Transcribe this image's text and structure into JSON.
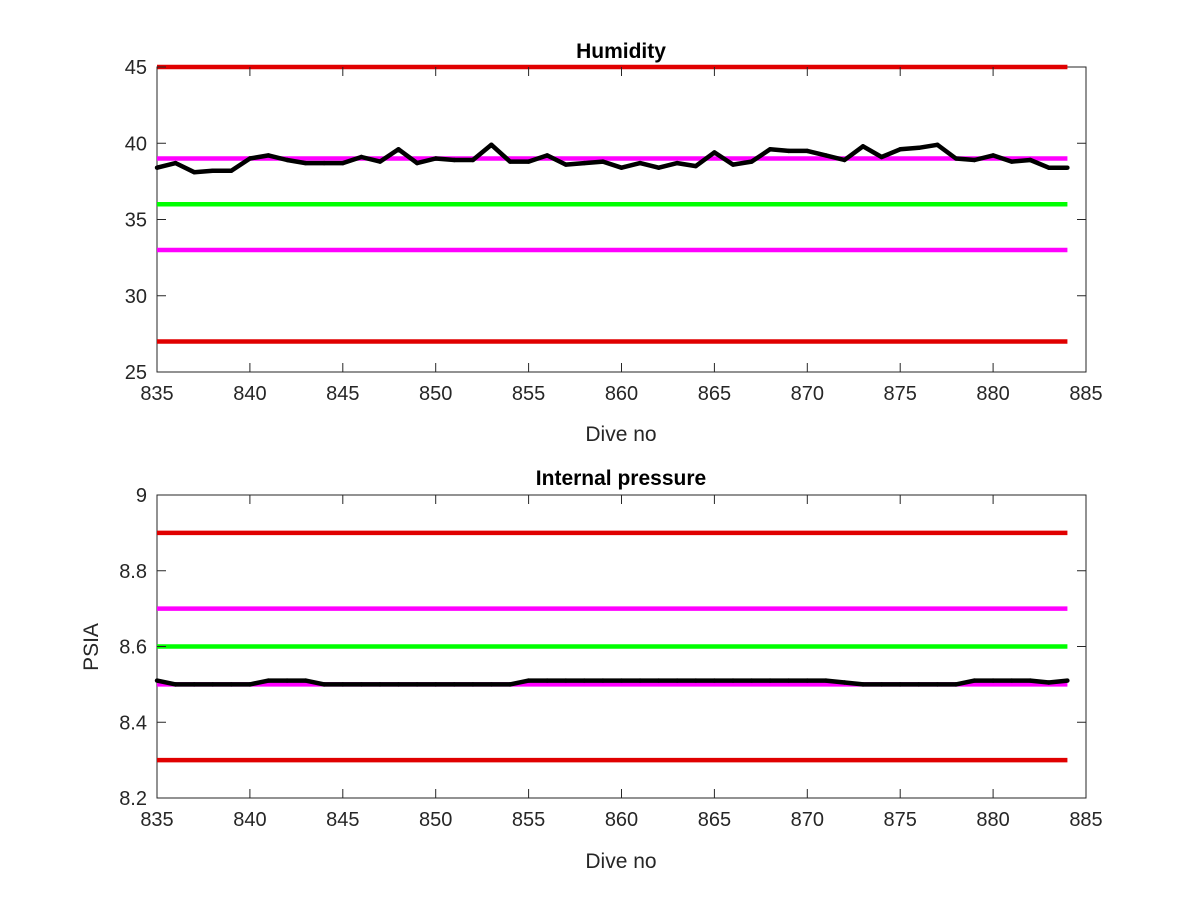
{
  "chart_data": [
    {
      "type": "line",
      "title": "Humidity",
      "xlabel": "Dive no",
      "ylabel": "",
      "xlim": [
        835,
        885
      ],
      "ylim": [
        25,
        45
      ],
      "xticks": [
        835,
        840,
        845,
        850,
        855,
        860,
        865,
        870,
        875,
        880,
        885
      ],
      "yticks": [
        25,
        30,
        35,
        40,
        45
      ],
      "grid": false,
      "series": [
        {
          "color": "#000000",
          "x": [
            835,
            836,
            837,
            838,
            839,
            840,
            841,
            842,
            843,
            844,
            845,
            846,
            847,
            848,
            849,
            850,
            851,
            852,
            853,
            854,
            855,
            856,
            857,
            858,
            859,
            860,
            861,
            862,
            863,
            864,
            865,
            866,
            867,
            868,
            869,
            870,
            871,
            872,
            873,
            874,
            875,
            876,
            877,
            878,
            879,
            880,
            881,
            882,
            883,
            884
          ],
          "y": [
            38.4,
            38.7,
            38.1,
            38.2,
            38.2,
            39.0,
            39.2,
            38.9,
            38.7,
            38.7,
            38.7,
            39.1,
            38.8,
            39.6,
            38.7,
            39.0,
            38.9,
            38.9,
            39.9,
            38.8,
            38.8,
            39.2,
            38.6,
            38.7,
            38.8,
            38.4,
            38.7,
            38.4,
            38.7,
            38.5,
            39.4,
            38.6,
            38.8,
            39.6,
            39.5,
            39.5,
            39.2,
            38.9,
            39.8,
            39.1,
            39.6,
            39.7,
            39.9,
            39.0,
            38.9,
            39.2,
            38.8,
            38.9,
            38.4,
            38.4
          ]
        }
      ],
      "reference_lines": [
        {
          "y": 45,
          "color": "#e00000"
        },
        {
          "y": 39,
          "color": "#ff00ff"
        },
        {
          "y": 36,
          "color": "#00ff00"
        },
        {
          "y": 33,
          "color": "#ff00ff"
        },
        {
          "y": 27,
          "color": "#e00000"
        }
      ]
    },
    {
      "type": "line",
      "title": "Internal pressure",
      "xlabel": "Dive no",
      "ylabel": "PSIA",
      "xlim": [
        835,
        885
      ],
      "ylim": [
        8.2,
        9
      ],
      "xticks": [
        835,
        840,
        845,
        850,
        855,
        860,
        865,
        870,
        875,
        880,
        885
      ],
      "yticks": [
        "8.2",
        "8.4",
        "8.6",
        "8.8",
        "9"
      ],
      "grid": false,
      "series": [
        {
          "color": "#000000",
          "x": [
            835,
            836,
            837,
            838,
            839,
            840,
            841,
            842,
            843,
            844,
            845,
            846,
            847,
            848,
            849,
            850,
            851,
            852,
            853,
            854,
            855,
            856,
            857,
            858,
            859,
            860,
            861,
            862,
            863,
            864,
            865,
            866,
            867,
            868,
            869,
            870,
            871,
            872,
            873,
            874,
            875,
            876,
            877,
            878,
            879,
            880,
            881,
            882,
            883,
            884
          ],
          "y": [
            8.51,
            8.5,
            8.5,
            8.5,
            8.5,
            8.5,
            8.51,
            8.51,
            8.51,
            8.5,
            8.5,
            8.5,
            8.5,
            8.5,
            8.5,
            8.5,
            8.5,
            8.5,
            8.5,
            8.5,
            8.51,
            8.51,
            8.51,
            8.51,
            8.51,
            8.51,
            8.51,
            8.51,
            8.51,
            8.51,
            8.51,
            8.51,
            8.51,
            8.51,
            8.51,
            8.51,
            8.51,
            8.505,
            8.5,
            8.5,
            8.5,
            8.5,
            8.5,
            8.5,
            8.51,
            8.51,
            8.51,
            8.51,
            8.505,
            8.51
          ]
        }
      ],
      "reference_lines": [
        {
          "y": 8.9,
          "color": "#e00000"
        },
        {
          "y": 8.7,
          "color": "#ff00ff"
        },
        {
          "y": 8.6,
          "color": "#00ff00"
        },
        {
          "y": 8.5,
          "color": "#ff00ff"
        },
        {
          "y": 8.3,
          "color": "#e00000"
        }
      ]
    }
  ]
}
